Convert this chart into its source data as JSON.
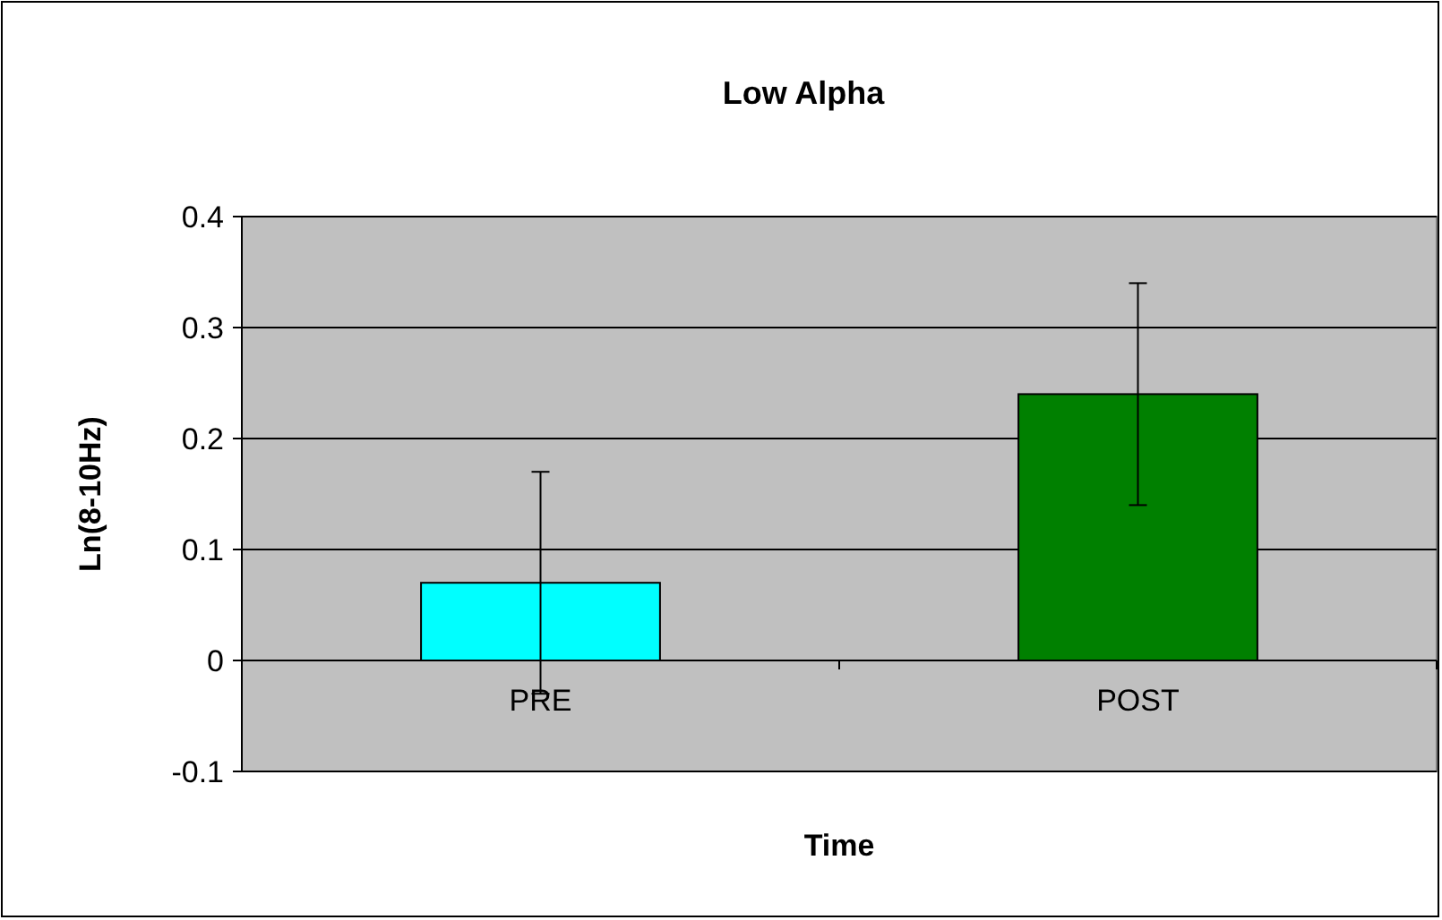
{
  "chart_data": {
    "type": "bar",
    "title": "Low Alpha",
    "xlabel": "Time",
    "ylabel": "Ln(8-10Hz)",
    "categories": [
      "PRE",
      "POST"
    ],
    "values": [
      0.07,
      0.24
    ],
    "colors": [
      "#00ffff",
      "#008000"
    ],
    "errors": [
      0.1,
      0.1
    ],
    "ylim": [
      -0.1,
      0.4
    ],
    "yticks": [
      -0.1,
      0,
      0.1,
      0.2,
      0.3,
      0.4
    ],
    "grid": "y"
  }
}
